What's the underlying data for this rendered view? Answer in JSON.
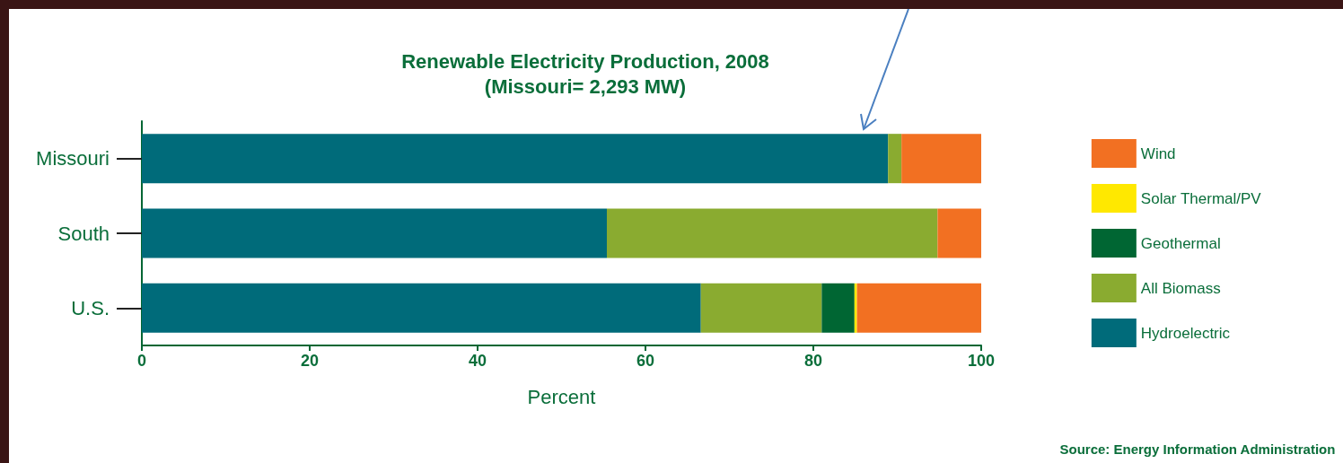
{
  "chart_data": {
    "type": "bar",
    "orientation": "horizontal",
    "stacked": true,
    "title": "Renewable Electricity Production, 2008",
    "subtitle": "(Missouri= 2,293 MW)",
    "xlabel": "Percent",
    "categories": [
      "Missouri",
      "South",
      "U.S."
    ],
    "series": [
      {
        "name": "Hydroelectric",
        "color": "#006b7a",
        "values": [
          88.9,
          55.4,
          66.6
        ]
      },
      {
        "name": "All Biomass",
        "color": "#8aab30",
        "values": [
          1.6,
          39.4,
          14.4
        ]
      },
      {
        "name": "Geothermal",
        "color": "#006633",
        "values": [
          0,
          0,
          3.9
        ]
      },
      {
        "name": "Solar Thermal/PV",
        "color": "#ffe800",
        "values": [
          0,
          0,
          0.3
        ]
      },
      {
        "name": "Wind",
        "color": "#f27022",
        "values": [
          9.5,
          5.2,
          14.8
        ]
      }
    ],
    "xlim": [
      0,
      100
    ],
    "xticks": [
      0,
      20,
      40,
      60,
      80,
      100
    ],
    "grid": false,
    "legend": "right",
    "annotations": [
      "Source: Energy Information Administration"
    ]
  }
}
